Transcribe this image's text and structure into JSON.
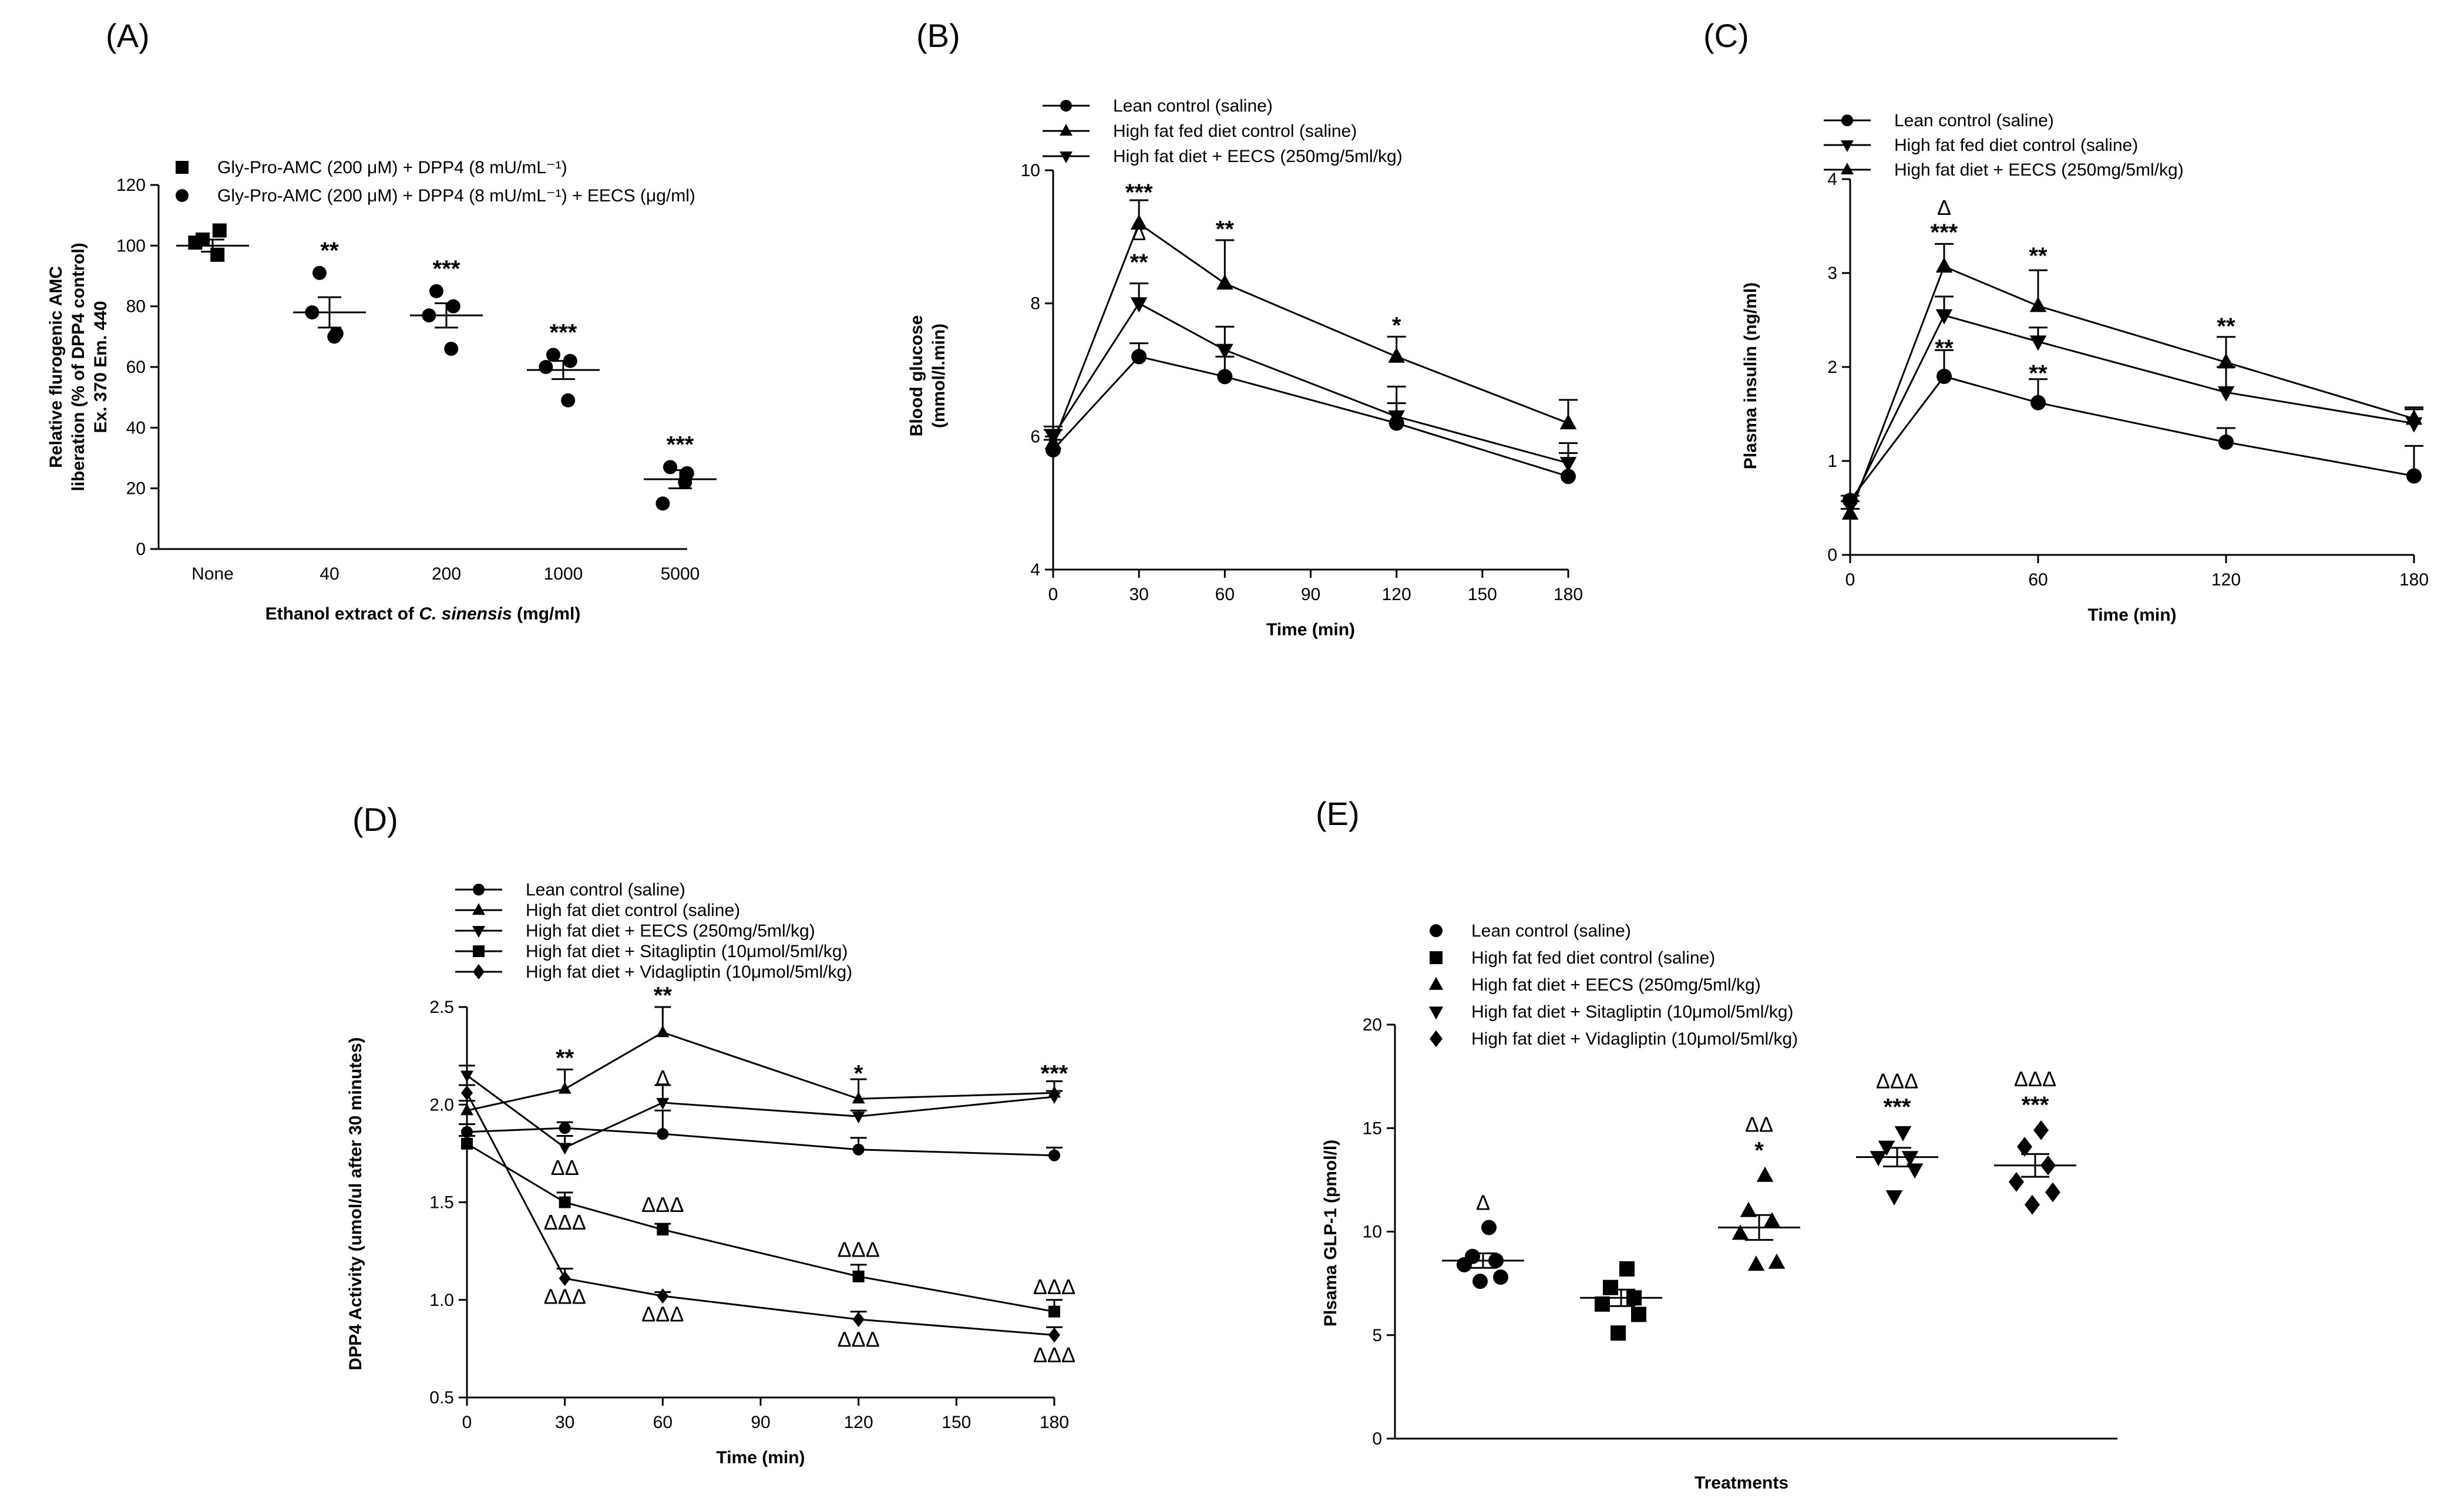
{
  "figure": {
    "panel_labels": [
      "(A)",
      "(B)",
      "(C)",
      "(D)",
      "(E)"
    ]
  },
  "chart_data": [
    {
      "id": "A",
      "type": "scatter",
      "title": "",
      "xlabel_parts": [
        "Ethanol extract of ",
        "C. sinensis",
        " (mg/ml)"
      ],
      "ylabel_lines": [
        "Relative flurogenic AMC",
        "liberation (% of DPP4 control)",
        "Ex. 370 Em. 440"
      ],
      "categories": [
        "None",
        "40",
        "200",
        "1000",
        "5000"
      ],
      "ylim": [
        0,
        120
      ],
      "yticks": [
        0,
        20,
        40,
        60,
        80,
        100,
        120
      ],
      "legend": [
        {
          "marker": "square",
          "label": "Gly-Pro-AMC (200  μM) + DPP4 (8 mU/mL⁻¹)"
        },
        {
          "marker": "circle",
          "label": "Gly-Pro-AMC (200  μM) + DPP4 (8 mU/mL⁻¹) + EECS (μg/ml)"
        }
      ],
      "series": [
        {
          "category": "None",
          "marker": "square",
          "points": [
            102,
            105,
            97,
            101
          ],
          "mean": 100,
          "sem": 2
        },
        {
          "category": "40",
          "marker": "circle",
          "points": [
            91,
            71,
            70,
            78
          ],
          "mean": 78,
          "sem": 5,
          "annotation": "**"
        },
        {
          "category": "200",
          "marker": "circle",
          "points": [
            85,
            80,
            66,
            77
          ],
          "mean": 77,
          "sem": 4,
          "annotation": "***"
        },
        {
          "category": "1000",
          "marker": "circle",
          "points": [
            64,
            62,
            49,
            60
          ],
          "mean": 59,
          "sem": 3,
          "annotation": "***"
        },
        {
          "category": "5000",
          "marker": "circle",
          "points": [
            27,
            25,
            22,
            15
          ],
          "mean": 23,
          "sem": 3,
          "annotation": "***"
        }
      ],
      "grid": false
    },
    {
      "id": "B",
      "type": "line",
      "title": "",
      "xlabel": "Time (min)",
      "ylabel_lines": [
        "Blood glucose",
        "(mmol/l.min)"
      ],
      "x": [
        0,
        30,
        60,
        120,
        180
      ],
      "xticks": [
        0,
        30,
        60,
        90,
        120,
        150,
        180
      ],
      "ylim": [
        4,
        10
      ],
      "yticks": [
        4,
        6,
        8,
        10
      ],
      "series": [
        {
          "name": "Lean control (saline)",
          "marker": "circle",
          "values": [
            5.8,
            7.2,
            6.9,
            6.2,
            5.4
          ],
          "err": [
            0.15,
            0.2,
            0.3,
            0.3,
            0.35
          ]
        },
        {
          "name": "High fat fed diet control (saline)",
          "marker": "triangle-up",
          "values": [
            5.9,
            9.2,
            8.3,
            7.2,
            6.2
          ],
          "err": [
            0.2,
            0.35,
            0.65,
            0.3,
            0.35
          ]
        },
        {
          "name": "High fat diet + EECS (250mg/5ml/kg)",
          "marker": "triangle-down",
          "values": [
            6.0,
            8.0,
            7.3,
            6.3,
            5.6
          ],
          "err": [
            0.15,
            0.3,
            0.35,
            0.45,
            0.3
          ]
        }
      ],
      "annotations": [
        {
          "x": 30,
          "y": 9.55,
          "text": "***"
        },
        {
          "x": 30,
          "y": 8.95,
          "text": "Δ",
          "style": "delta"
        },
        {
          "x": 30,
          "y": 8.5,
          "text": "**"
        },
        {
          "x": 60,
          "y": 9.0,
          "text": "**"
        },
        {
          "x": 120,
          "y": 7.55,
          "text": "*"
        }
      ],
      "legend_position": "top-left",
      "grid": false
    },
    {
      "id": "C",
      "type": "line",
      "title": "",
      "xlabel": "Time (min)",
      "ylabel": "Plasma insulin (ng/ml)",
      "x": [
        0,
        30,
        60,
        120,
        180
      ],
      "xticks": [
        0,
        60,
        120,
        180
      ],
      "ylim": [
        0,
        4
      ],
      "yticks": [
        0,
        1,
        2,
        3,
        4
      ],
      "series": [
        {
          "name": "Lean control (saline)",
          "marker": "circle",
          "values": [
            0.58,
            1.9,
            1.62,
            1.2,
            0.84
          ],
          "err": [
            0.05,
            0.28,
            0.25,
            0.15,
            0.32
          ]
        },
        {
          "name": "High fat fed diet control (saline)",
          "marker": "triangle-down",
          "values": [
            0.52,
            2.55,
            2.27,
            1.73,
            1.4
          ],
          "err": [
            0.05,
            0.2,
            0.15,
            0.27,
            0.15
          ]
        },
        {
          "name": "High fat diet + EECS (250mg/5ml/kg)",
          "marker": "triangle-up",
          "values": [
            0.44,
            3.07,
            2.65,
            2.05,
            1.45
          ],
          "err": [
            0.05,
            0.24,
            0.38,
            0.27,
            0.12
          ]
        }
      ],
      "annotations": [
        {
          "x": 30,
          "y": 3.62,
          "text": "Δ",
          "style": "delta"
        },
        {
          "x": 30,
          "y": 3.35,
          "text": "***"
        },
        {
          "x": 60,
          "y": 3.1,
          "text": "**"
        },
        {
          "x": 120,
          "y": 2.35,
          "text": "**"
        },
        {
          "x": 30,
          "y": 2.12,
          "text": "**"
        },
        {
          "x": 60,
          "y": 1.85,
          "text": "**"
        }
      ],
      "legend_position": "top-left",
      "grid": false
    },
    {
      "id": "D",
      "type": "line",
      "title": "",
      "xlabel": "Time (min)",
      "ylabel": "DPP4 Activity (umol/ul after 30 minutes)",
      "x": [
        0,
        30,
        60,
        120,
        180
      ],
      "xticks": [
        0,
        30,
        60,
        90,
        120,
        150,
        180
      ],
      "ylim": [
        0.5,
        2.5
      ],
      "yticks": [
        0.5,
        1.0,
        1.5,
        2.0,
        2.5
      ],
      "series": [
        {
          "name": "Lean control (saline)",
          "marker": "circle",
          "values": [
            1.86,
            1.88,
            1.85,
            1.77,
            1.74
          ],
          "err": [
            0.04,
            0.03,
            0.12,
            0.06,
            0.04
          ]
        },
        {
          "name": "High fat diet control (saline)",
          "marker": "triangle-up",
          "values": [
            1.97,
            2.08,
            2.37,
            2.03,
            2.06
          ],
          "err": [
            0.05,
            0.1,
            0.13,
            0.1,
            0.06
          ]
        },
        {
          "name": "High fat diet + EECS (250mg/5ml/kg)",
          "marker": "triangle-down",
          "values": [
            2.15,
            1.78,
            2.01,
            1.94,
            2.04
          ],
          "err": [
            0.05,
            0.06,
            0.09,
            0.03,
            0.03
          ]
        },
        {
          "name": "High fat diet + Sitagliptin (10μmol/5ml/kg)",
          "marker": "square",
          "values": [
            1.8,
            1.5,
            1.36,
            1.12,
            0.94
          ],
          "err": [
            0.04,
            0.05,
            0.03,
            0.06,
            0.06
          ]
        },
        {
          "name": "High fat diet + Vidagliptin (10μmol/5ml/kg)",
          "marker": "diamond",
          "values": [
            2.06,
            1.11,
            1.02,
            0.9,
            0.82
          ],
          "err": [
            0.04,
            0.05,
            0.02,
            0.04,
            0.04
          ]
        }
      ],
      "annotations": [
        {
          "x": 30,
          "y": 2.2,
          "text": "**"
        },
        {
          "x": 60,
          "y": 2.52,
          "text": "**"
        },
        {
          "x": 60,
          "y": 2.1,
          "text": "Δ",
          "style": "delta"
        },
        {
          "x": 120,
          "y": 2.12,
          "text": "*"
        },
        {
          "x": 180,
          "y": 2.12,
          "text": "***"
        },
        {
          "x": 30,
          "y": 1.64,
          "text": "ΔΔ",
          "style": "delta"
        },
        {
          "x": 30,
          "y": 1.36,
          "text": "ΔΔΔ",
          "style": "delta"
        },
        {
          "x": 60,
          "y": 1.45,
          "text": "ΔΔΔ",
          "style": "delta"
        },
        {
          "x": 120,
          "y": 1.22,
          "text": "ΔΔΔ",
          "style": "delta"
        },
        {
          "x": 180,
          "y": 1.03,
          "text": "ΔΔΔ",
          "style": "delta"
        },
        {
          "x": 30,
          "y": 0.98,
          "text": "ΔΔΔ",
          "style": "delta"
        },
        {
          "x": 60,
          "y": 0.89,
          "text": "ΔΔΔ",
          "style": "delta"
        },
        {
          "x": 120,
          "y": 0.76,
          "text": "ΔΔΔ",
          "style": "delta"
        },
        {
          "x": 180,
          "y": 0.68,
          "text": "ΔΔΔ",
          "style": "delta"
        }
      ],
      "legend_position": "top-left",
      "grid": false
    },
    {
      "id": "E",
      "type": "scatter",
      "title": "",
      "xlabel": "Treatments",
      "ylabel": "Plsama GLP-1 (pmol/l)",
      "ylim": [
        0,
        20
      ],
      "yticks": [
        0,
        5,
        10,
        15,
        20
      ],
      "legend": [
        {
          "marker": "circle",
          "label": "Lean control (saline)"
        },
        {
          "marker": "square",
          "label": "High fat fed diet control (saline)"
        },
        {
          "marker": "triangle-up",
          "label": "High fat diet  + EECS (250mg/5ml/kg)"
        },
        {
          "marker": "triangle-down",
          "label": "High fat diet  + Sitagliptin  (10μmol/5ml/kg)"
        },
        {
          "marker": "diamond",
          "label": "High fat diet + Vidagliptin (10μmol/5ml/kg)"
        }
      ],
      "series": [
        {
          "group": "Lean control (saline)",
          "marker": "circle",
          "points": [
            10.2,
            8.8,
            8.6,
            8.4,
            7.8,
            7.6
          ],
          "mean": 8.6,
          "sem": 0.35,
          "annotations": [
            "Δ"
          ]
        },
        {
          "group": "High fat fed diet control (saline)",
          "marker": "square",
          "points": [
            8.2,
            7.3,
            6.8,
            6.5,
            6.0,
            5.1
          ],
          "mean": 6.8,
          "sem": 0.4,
          "annotations": []
        },
        {
          "group": "High fat diet + EECS",
          "marker": "triangle-up",
          "points": [
            12.7,
            11.0,
            10.5,
            9.9,
            8.5,
            8.4
          ],
          "mean": 10.2,
          "sem": 0.6,
          "annotations": [
            "ΔΔ",
            "*"
          ]
        },
        {
          "group": "High fat diet + Sitagliptin",
          "marker": "triangle-down",
          "points": [
            14.8,
            14.1,
            13.6,
            13.6,
            13.0,
            11.7
          ],
          "mean": 13.6,
          "sem": 0.45,
          "annotations": [
            "ΔΔΔ",
            "***"
          ]
        },
        {
          "group": "High fat diet + Vidagliptin",
          "marker": "diamond",
          "points": [
            14.9,
            14.1,
            13.2,
            12.4,
            11.9,
            11.3
          ],
          "mean": 13.2,
          "sem": 0.55,
          "annotations": [
            "ΔΔΔ",
            "***"
          ]
        }
      ],
      "grid": false
    }
  ]
}
